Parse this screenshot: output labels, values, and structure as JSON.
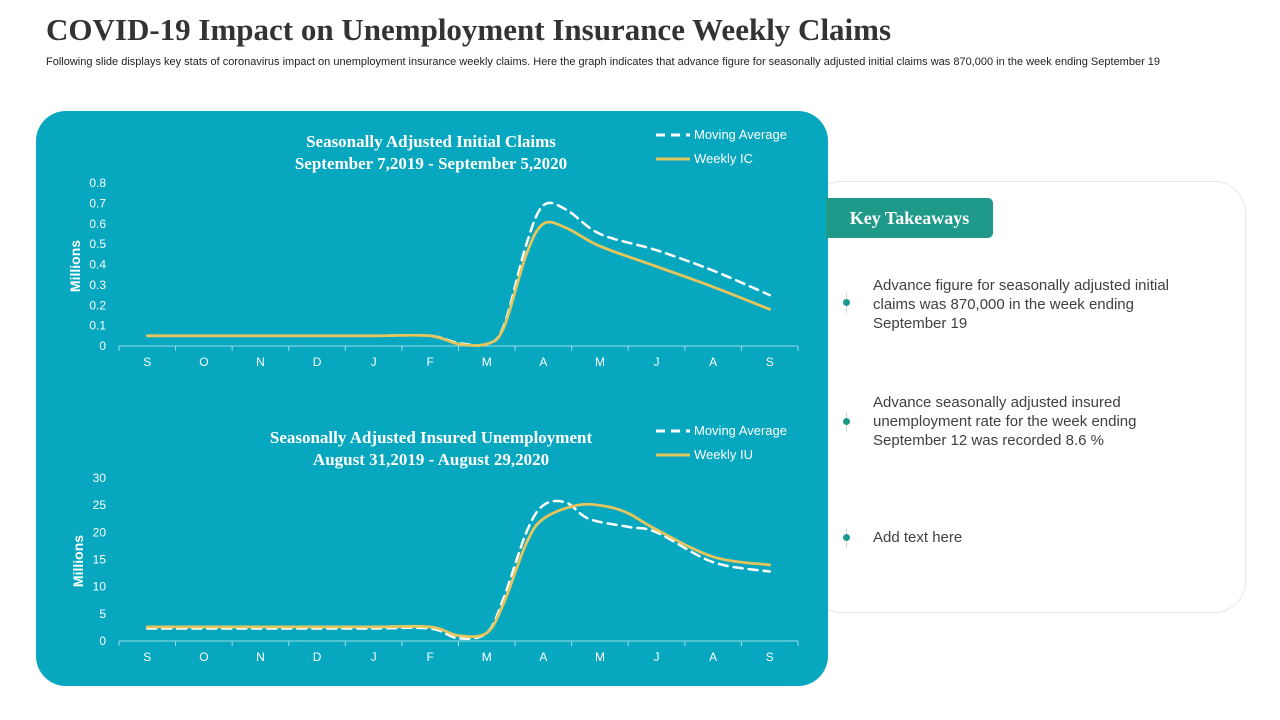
{
  "slide": {
    "title": "COVID-19 Impact on Unemployment Insurance Weekly Claims",
    "subtitle": "Following slide displays key stats of coronavirus impact on unemployment insurance weekly claims. Here the graph indicates that advance figure for seasonally adjusted initial claims was 870,000 in the week ending September 19"
  },
  "takeaways": {
    "heading": "Key Takeaways",
    "items": [
      {
        "text": "Advance figure for seasonally adjusted initial claims was 870,000 in the week ending September 19"
      },
      {
        "text": "Advance seasonally adjusted insured unemployment  rate for the week ending September 12 was recorded  8.6 %"
      },
      {
        "text": "Add text here"
      }
    ]
  },
  "colors": {
    "panel": "#06a7bf",
    "weekly_line": "#e5c55c",
    "moving_average": "#ffffff",
    "accent": "#1f9a8a"
  },
  "chart_data": [
    {
      "type": "line",
      "title": "Seasonally Adjusted Initial Claims",
      "subtitle": "September 7,2019 - September 5,2020",
      "xlabel": "",
      "ylabel": "Millions",
      "categories": [
        "S",
        "O",
        "N",
        "D",
        "J",
        "F",
        "M",
        "A",
        "M",
        "J",
        "A",
        "S"
      ],
      "yticks": [
        "0",
        "0.1",
        "0.2",
        "0.3",
        "0.4",
        "0.5",
        "0.6",
        "0.7",
        "0.8"
      ],
      "ylim": [
        0,
        0.8
      ],
      "legend": "top-right",
      "series": [
        {
          "name": "Moving Average",
          "style": "dashed",
          "points": [
            [
              0,
              0.05
            ],
            [
              1,
              0.05
            ],
            [
              2,
              0.05
            ],
            [
              3,
              0.05
            ],
            [
              4,
              0.05
            ],
            [
              5,
              0.05
            ],
            [
              5.5,
              0.015
            ],
            [
              6,
              0.01
            ],
            [
              6.3,
              0.1
            ],
            [
              6.7,
              0.5
            ],
            [
              7,
              0.69
            ],
            [
              7.4,
              0.67
            ],
            [
              8,
              0.55
            ],
            [
              9,
              0.47
            ],
            [
              10,
              0.37
            ],
            [
              11,
              0.25
            ]
          ]
        },
        {
          "name": "Weekly IC",
          "style": "solid",
          "points": [
            [
              0,
              0.05
            ],
            [
              1,
              0.05
            ],
            [
              2,
              0.05
            ],
            [
              3,
              0.05
            ],
            [
              4,
              0.05
            ],
            [
              5,
              0.05
            ],
            [
              5.5,
              0.01
            ],
            [
              6,
              0.01
            ],
            [
              6.3,
              0.09
            ],
            [
              6.7,
              0.45
            ],
            [
              7,
              0.6
            ],
            [
              7.4,
              0.58
            ],
            [
              8,
              0.49
            ],
            [
              9,
              0.39
            ],
            [
              10,
              0.29
            ],
            [
              11,
              0.18
            ]
          ]
        }
      ]
    },
    {
      "type": "line",
      "title": "Seasonally Adjusted Insured Unemployment",
      "subtitle": "August 31,2019 - August 29,2020",
      "xlabel": "",
      "ylabel": "Millions",
      "categories": [
        "S",
        "O",
        "N",
        "D",
        "J",
        "F",
        "M",
        "A",
        "M",
        "J",
        "A",
        "S"
      ],
      "yticks": [
        "0",
        "5",
        "10",
        "15",
        "20",
        "25",
        "30"
      ],
      "ylim": [
        0,
        30
      ],
      "legend": "top-right",
      "series": [
        {
          "name": "Moving Average",
          "style": "dashed",
          "points": [
            [
              0,
              2.3
            ],
            [
              1,
              2.3
            ],
            [
              2,
              2.3
            ],
            [
              3,
              2.3
            ],
            [
              4,
              2.3
            ],
            [
              5,
              2.3
            ],
            [
              5.5,
              0.5
            ],
            [
              6,
              1.5
            ],
            [
              6.3,
              8
            ],
            [
              6.7,
              20
            ],
            [
              7,
              25
            ],
            [
              7.4,
              25.5
            ],
            [
              7.8,
              22.5
            ],
            [
              8.5,
              21
            ],
            [
              9,
              20
            ],
            [
              10,
              14.5
            ],
            [
              11,
              12.8
            ]
          ]
        },
        {
          "name": "Weekly IU",
          "style": "solid",
          "points": [
            [
              0,
              2.6
            ],
            [
              1,
              2.6
            ],
            [
              2,
              2.6
            ],
            [
              3,
              2.6
            ],
            [
              4,
              2.6
            ],
            [
              5,
              2.6
            ],
            [
              5.5,
              1
            ],
            [
              6,
              1.5
            ],
            [
              6.3,
              7
            ],
            [
              6.7,
              18
            ],
            [
              7,
              22.5
            ],
            [
              7.6,
              25
            ],
            [
              8.1,
              24.8
            ],
            [
              8.5,
              23.5
            ],
            [
              9,
              20.5
            ],
            [
              10,
              15.5
            ],
            [
              11,
              14
            ]
          ]
        }
      ]
    }
  ]
}
